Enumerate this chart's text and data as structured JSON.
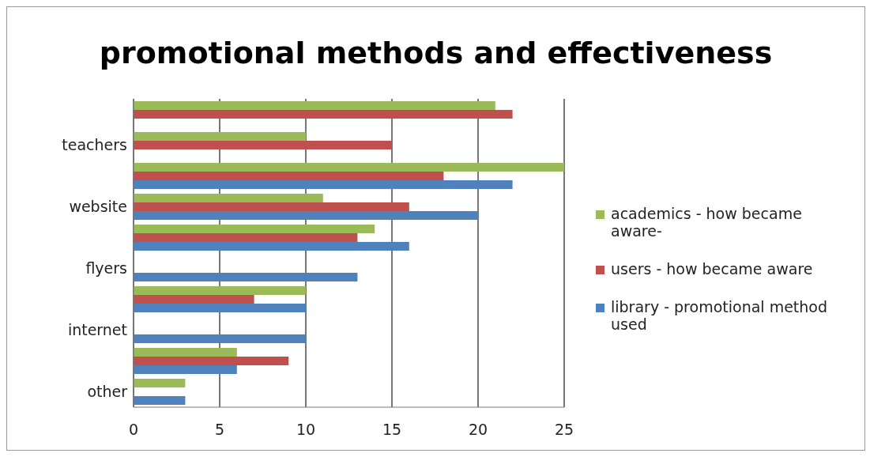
{
  "chart_data": {
    "type": "bar",
    "orientation": "horizontal",
    "title": "promotional methods and effectiveness",
    "categories": [
      null,
      "teachers",
      null,
      "website",
      null,
      "flyers",
      null,
      "internet",
      null,
      "other"
    ],
    "series": [
      {
        "name": "academics - how became aware-",
        "color": "#9bbb59",
        "values": [
          21,
          10,
          25,
          11,
          14,
          null,
          10,
          null,
          6,
          3
        ]
      },
      {
        "name": "users - how became aware",
        "color": "#c0504d",
        "values": [
          22,
          15,
          18,
          16,
          13,
          null,
          7,
          null,
          9,
          null
        ]
      },
      {
        "name": "library - promotional method used",
        "color": "#4f81bd",
        "values": [
          null,
          null,
          22,
          20,
          16,
          13,
          10,
          10,
          6,
          3
        ]
      }
    ],
    "xlim": [
      0,
      25
    ],
    "xticks": [
      0,
      5,
      10,
      15,
      20,
      25
    ],
    "grid": "x",
    "legend": "right"
  }
}
